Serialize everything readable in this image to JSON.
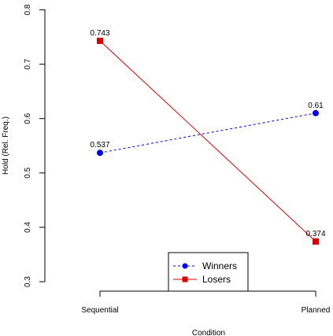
{
  "chart_data": {
    "type": "line",
    "categories": [
      "Sequential",
      "Planned"
    ],
    "series": [
      {
        "name": "Winners",
        "values": [
          0.537,
          0.61
        ],
        "labels": [
          "0.537",
          "0.61"
        ],
        "color": "#0000ee",
        "line_style": "dashed",
        "marker": "circle"
      },
      {
        "name": "Losers",
        "values": [
          0.743,
          0.374
        ],
        "labels": [
          "0.743",
          "0.374"
        ],
        "color": "#dd0000",
        "line_style": "solid",
        "marker": "square"
      }
    ],
    "xlabel": "Condition",
    "ylabel": "Hold (Rel. Freq.)",
    "ylim": [
      0.28,
      0.82
    ],
    "yticks": [
      0.3,
      0.4,
      0.5,
      0.6,
      0.7,
      0.8
    ],
    "ytick_labels": [
      "0.3",
      "0.4",
      "0.5",
      "0.6",
      "0.7",
      "0.8"
    ],
    "grid": false,
    "legend_position": "bottom-center"
  }
}
